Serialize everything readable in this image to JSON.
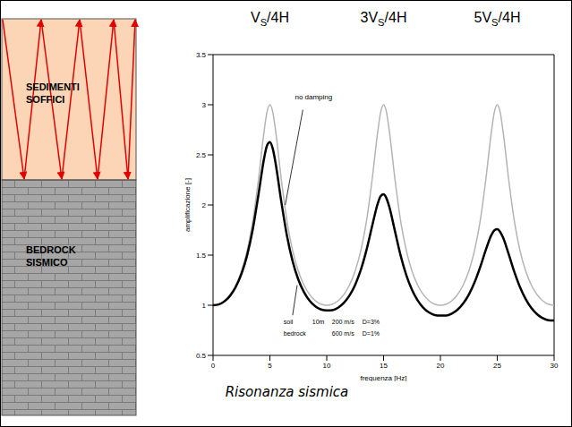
{
  "chart_data": {
    "type": "line",
    "xlabel": "frequenza [Hz]",
    "ylabel": "amplificazione [-]",
    "x": [
      0,
      0.5,
      1,
      1.5,
      2,
      2.5,
      3,
      3.5,
      4,
      4.5,
      4.75,
      5,
      5.25,
      5.5,
      6,
      6.5,
      7,
      7.5,
      8,
      8.5,
      9,
      9.5,
      10,
      10.5,
      11,
      11.5,
      12,
      12.5,
      13,
      13.5,
      14,
      14.5,
      14.75,
      15,
      15.25,
      15.5,
      16,
      16.5,
      17,
      17.5,
      18,
      18.5,
      19,
      19.5,
      20,
      20.5,
      21,
      21.5,
      22,
      22.5,
      23,
      23.5,
      24,
      24.5,
      24.75,
      25,
      25.25,
      25.5,
      26,
      26.5,
      27,
      27.5,
      28,
      28.5,
      29,
      29.5,
      30
    ],
    "series": [
      {
        "name": "no damping",
        "color": "#b4b4b4",
        "values": [
          1,
          1.011,
          1.045,
          1.106,
          1.201,
          1.342,
          1.546,
          1.843,
          2.259,
          2.743,
          2.929,
          3,
          2.929,
          2.743,
          2.259,
          1.843,
          1.546,
          1.342,
          1.201,
          1.106,
          1.045,
          1.011,
          1,
          1.011,
          1.045,
          1.106,
          1.201,
          1.342,
          1.546,
          1.843,
          2.259,
          2.743,
          2.929,
          3,
          2.929,
          2.743,
          2.259,
          1.843,
          1.546,
          1.342,
          1.201,
          1.106,
          1.045,
          1.011,
          1,
          1.011,
          1.045,
          1.106,
          1.201,
          1.342,
          1.546,
          1.843,
          2.259,
          2.743,
          2.929,
          3,
          2.929,
          2.743,
          2.259,
          1.843,
          1.546,
          1.342,
          1.201,
          1.106,
          1.045,
          1.011,
          1
        ]
      },
      {
        "color": "#000000",
        "values": [
          1,
          1.008,
          1.039,
          1.095,
          1.183,
          1.313,
          1.499,
          1.761,
          2.107,
          2.471,
          2.594,
          2.628,
          2.563,
          2.418,
          2.037,
          1.694,
          1.439,
          1.257,
          1.131,
          1.044,
          0.988,
          0.957,
          0.948,
          0.951,
          0.976,
          1.023,
          1.097,
          1.204,
          1.353,
          1.552,
          1.793,
          2.019,
          2.089,
          2.107,
          2.068,
          1.983,
          1.74,
          1.497,
          1.301,
          1.154,
          1.048,
          0.975,
          0.928,
          0.902,
          0.897,
          0.897,
          0.916,
          0.955,
          1.017,
          1.106,
          1.227,
          1.38,
          1.554,
          1.704,
          1.747,
          1.758,
          1.733,
          1.678,
          1.512,
          1.334,
          1.181,
          1.062,
          0.973,
          0.911,
          0.871,
          0.85,
          0.848
        ]
      }
    ],
    "xlim": [
      0,
      30
    ],
    "xticks": [
      0,
      5,
      10,
      15,
      20,
      25,
      30
    ],
    "ylim": [
      0.5,
      3.5
    ],
    "yticks": [
      0.5,
      1,
      1.5,
      2,
      2.5,
      3,
      3.5
    ],
    "top_labels": [
      {
        "x": 5,
        "text": "VS/4H"
      },
      {
        "x": 15,
        "text": "3VS/4H"
      },
      {
        "x": 25,
        "text": "5VS/4H"
      }
    ],
    "layers_table": [
      {
        "name": "soil",
        "thickness": "10m",
        "velocity": "200 m/s",
        "damping": "D=3%"
      },
      {
        "name": "bedrock",
        "velocity": "600 m/s",
        "damping": "D=1%"
      }
    ]
  },
  "diagram": {
    "layers": [
      "SEDIMENTI SOFFICI",
      "BEDROCK SISMICO"
    ]
  },
  "caption": "Risonanza sismica"
}
